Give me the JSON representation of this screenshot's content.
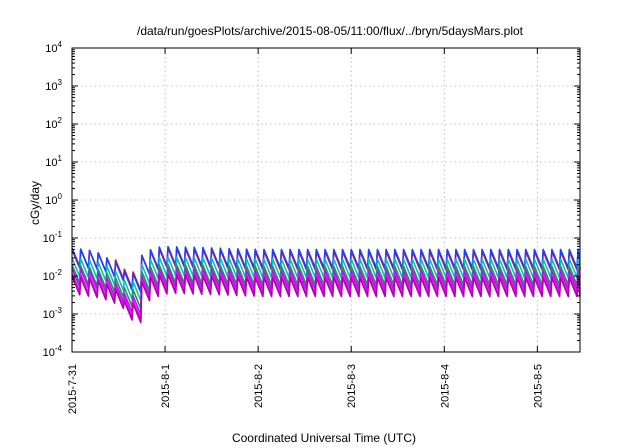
{
  "chart_data": {
    "type": "line",
    "title": "/data/run/goesPlots/archive/2015-08-05/11:00/flux/../bryn/5daysMars.plot",
    "xlabel": "Coordinated Universal Time (UTC)",
    "ylabel": "cGy/day",
    "xscale": "time",
    "yscale": "log",
    "xlim": [
      "2015-07-31T00:00",
      "2015-08-05T11:00"
    ],
    "ylim": [
      0.0001,
      10000
    ],
    "grid": true,
    "x_ticks": [
      "2015-7-31",
      "2015-8-1",
      "2015-8-2",
      "2015-8-3",
      "2015-8-4",
      "2015-8-5"
    ],
    "y_ticks": [
      {
        "base": "10",
        "exp": "-4"
      },
      {
        "base": "10",
        "exp": "-3"
      },
      {
        "base": "10",
        "exp": "-2"
      },
      {
        "base": "10",
        "exp": "-1"
      },
      {
        "base": "10",
        "exp": "0"
      },
      {
        "base": "10",
        "exp": "1"
      },
      {
        "base": "10",
        "exp": "2"
      },
      {
        "base": "10",
        "exp": "3"
      },
      {
        "base": "10",
        "exp": "4"
      }
    ],
    "x": [
      "2015-07-31T00:00",
      "2015-07-31T03:00",
      "2015-07-31T06:00",
      "2015-07-31T09:00",
      "2015-07-31T12:00",
      "2015-07-31T15:00",
      "2015-07-31T18:00",
      "2015-07-31T21:00",
      "2015-08-01T00:00",
      "2015-08-01T12:00",
      "2015-08-02T00:00",
      "2015-08-02T12:00",
      "2015-08-03T00:00",
      "2015-08-03T12:00",
      "2015-08-04T00:00",
      "2015-08-04T12:00",
      "2015-08-05T00:00",
      "2015-08-05T11:00"
    ],
    "series": [
      {
        "color": "#ff0000",
        "values": [
          0.05,
          0.05,
          0.045,
          0.03,
          0.025,
          0.009,
          0.035,
          0.05,
          0.055,
          0.05,
          0.045,
          0.045,
          0.045,
          0.045,
          0.045,
          0.045,
          0.045,
          0.045
        ]
      },
      {
        "color": "#1f3fff",
        "values": [
          0.055,
          0.05,
          0.045,
          0.03,
          0.022,
          0.008,
          0.035,
          0.055,
          0.06,
          0.055,
          0.05,
          0.05,
          0.05,
          0.05,
          0.05,
          0.05,
          0.05,
          0.05
        ]
      },
      {
        "color": "#00c0c0",
        "values": [
          0.03,
          0.028,
          0.025,
          0.018,
          0.012,
          0.005,
          0.02,
          0.03,
          0.032,
          0.03,
          0.028,
          0.028,
          0.028,
          0.028,
          0.028,
          0.028,
          0.028,
          0.028
        ]
      },
      {
        "color": "#2e8b57",
        "values": [
          0.02,
          0.018,
          0.016,
          0.012,
          0.008,
          0.003,
          0.013,
          0.019,
          0.02,
          0.019,
          0.018,
          0.018,
          0.018,
          0.018,
          0.018,
          0.018,
          0.018,
          0.018
        ]
      },
      {
        "color": "#8a2be2",
        "values": [
          0.016,
          0.015,
          0.013,
          0.009,
          0.006,
          0.002,
          0.01,
          0.015,
          0.016,
          0.015,
          0.014,
          0.014,
          0.014,
          0.014,
          0.014,
          0.014,
          0.014,
          0.014
        ]
      },
      {
        "color": "#ff00ff",
        "values": [
          0.012,
          0.011,
          0.01,
          0.007,
          0.005,
          0.0015,
          0.008,
          0.012,
          0.013,
          0.012,
          0.011,
          0.011,
          0.011,
          0.011,
          0.011,
          0.011,
          0.011,
          0.011
        ]
      },
      {
        "color": "#b000b0",
        "values": [
          0.01,
          0.009,
          0.008,
          0.006,
          0.004,
          0.0012,
          0.007,
          0.01,
          0.011,
          0.01,
          0.009,
          0.009,
          0.009,
          0.009,
          0.009,
          0.009,
          0.009,
          0.009
        ]
      }
    ]
  }
}
